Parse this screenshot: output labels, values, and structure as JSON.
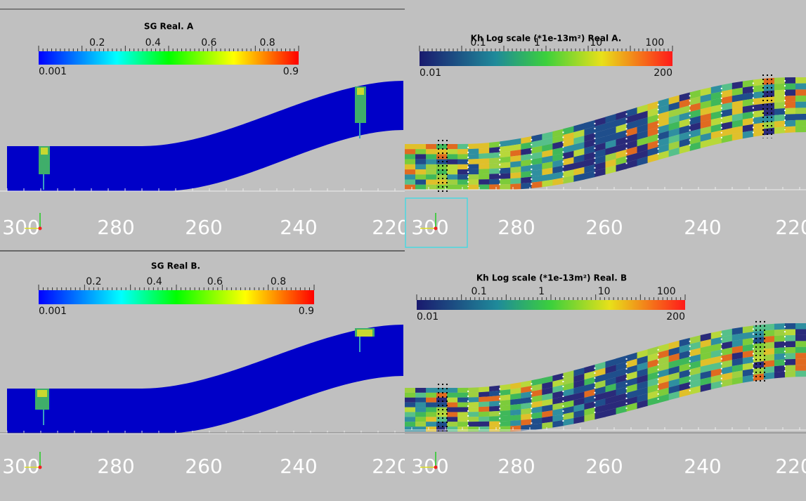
{
  "panels": [
    {
      "title": "SG Real. A",
      "colorbar_ticks": [
        "0.2",
        "0.4",
        "0.6",
        "0.8"
      ],
      "range_min": "0.001",
      "range_max": "0.9",
      "axis_labels": [
        "300",
        "280",
        "260",
        "240",
        "220"
      ]
    },
    {
      "title": "Kh Log scale (*1e-13m²) Real A.",
      "colorbar_ticks": [
        "0.1",
        "1",
        "10",
        "100"
      ],
      "range_min": "0.01",
      "range_max": "200",
      "axis_labels": [
        "300",
        "280",
        "260",
        "240",
        "220"
      ]
    },
    {
      "title": "SG Real B.",
      "colorbar_ticks": [
        "0.2",
        "0.4",
        "0.6",
        "0.8"
      ],
      "range_min": "0.001",
      "range_max": "0.9",
      "axis_labels": [
        "300",
        "280",
        "260",
        "240",
        "220"
      ]
    },
    {
      "title": "Kh Log scale (*1e-13m²) Real. B",
      "colorbar_ticks": [
        "0.1",
        "1",
        "10",
        "100"
      ],
      "range_min": "0.01",
      "range_max": "200",
      "axis_labels": [
        "300",
        "280",
        "260",
        "240",
        "220"
      ]
    }
  ]
}
